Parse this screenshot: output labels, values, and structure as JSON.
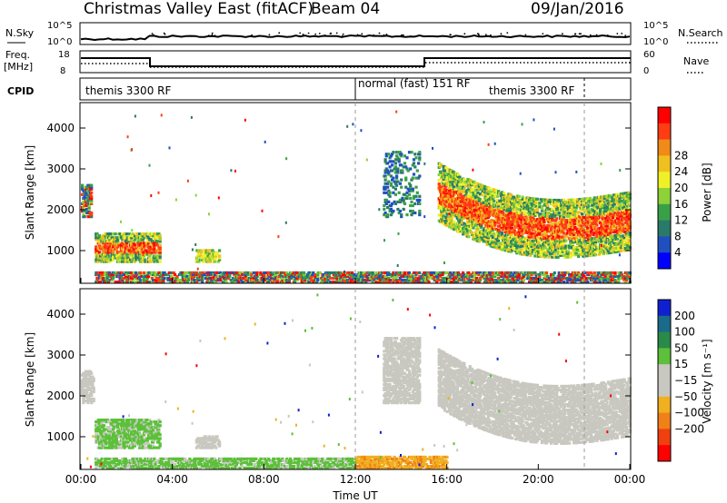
{
  "header": {
    "title": "Christmas Valley East (fitACF)",
    "beam": "Beam 04",
    "date": "09/Jan/2016"
  },
  "panels": {
    "nsky_label": "N.Sky",
    "nsearch_label": "N.Search",
    "freq_label_1": "Freq.",
    "freq_label_2": "[MHz]",
    "nave_label": "Nave",
    "cpid_label": "CPID",
    "nsky_ticks": [
      "10^5",
      "10^0"
    ],
    "nsearch_ticks": [
      "10^5",
      "10^0"
    ],
    "freq_ticks": [
      "18",
      "8"
    ],
    "nave_ticks": [
      "60",
      "0"
    ],
    "cpid_segments": [
      {
        "label": "themis 3300 RF",
        "start": 0,
        "end": 12
      },
      {
        "label": "normal (fast) 151 RF",
        "start": 12,
        "end": 22
      },
      {
        "label": "themis 3300 RF",
        "start": 16.4,
        "end": 24
      }
    ]
  },
  "chart_data": [
    {
      "type": "heatmap",
      "name": "Power",
      "xlabel": "",
      "ylabel": "Slant Range [km]",
      "ylim": [
        200,
        4600
      ],
      "yticks": [
        "1000",
        "2000",
        "3000",
        "4000"
      ],
      "colorbar": {
        "label": "Power [dB]",
        "ticks": [
          "4",
          "8",
          "12",
          "16",
          "20",
          "24",
          "28"
        ],
        "colors": [
          "#0000ff",
          "#2050c0",
          "#2a7a6a",
          "#3aa048",
          "#8cd238",
          "#f0f028",
          "#f0c020",
          "#f08a18",
          "#ff3c14",
          "#ff0000"
        ]
      },
      "bands": [
        {
          "t0": 0.0,
          "t1": 0.4,
          "r0": 1800,
          "r1": 2600,
          "level": "mixed"
        },
        {
          "t0": 0.6,
          "t1": 3.4,
          "r0": 700,
          "r1": 1400,
          "level": "high"
        },
        {
          "t0": 5.0,
          "t1": 6.0,
          "r0": 700,
          "r1": 1000,
          "level": "mid"
        },
        {
          "t0": 0.6,
          "t1": 24.0,
          "r0": 200,
          "r1": 450,
          "level": "mixed"
        },
        {
          "t0": 13.2,
          "t1": 14.8,
          "r0": 1800,
          "r1": 3400,
          "level": "sparse"
        },
        {
          "t0": 15.6,
          "t1": 24.0,
          "r0": 1000,
          "r1": 2400,
          "level": "high"
        }
      ]
    },
    {
      "type": "heatmap",
      "name": "Velocity",
      "xlabel": "Time UT",
      "ylabel": "Slant Range [km]",
      "ylim": [
        200,
        4600
      ],
      "yticks": [
        "1000",
        "2000",
        "3000",
        "4000"
      ],
      "xticks": [
        "00:00",
        "04:00",
        "08:00",
        "12:00",
        "16:00",
        "20:00",
        "00:00"
      ],
      "colorbar": {
        "label": "Velocity [m s⁻¹]",
        "ticks": [
          "200",
          "100",
          "50",
          "15",
          "−15",
          "−50",
          "−100",
          "−200"
        ],
        "colors": [
          "#1020d0",
          "#1a6a8a",
          "#2a8a4a",
          "#5cc03a",
          "#c8c8c0",
          "#c8c8c0",
          "#f0b020",
          "#f08018",
          "#f04010",
          "#ff0000"
        ]
      },
      "bands": [
        {
          "t0": 0.0,
          "t1": 0.5,
          "r0": 1800,
          "r1": 2600,
          "level": "ground"
        },
        {
          "t0": 0.6,
          "t1": 3.4,
          "r0": 700,
          "r1": 1400,
          "level": "positive"
        },
        {
          "t0": 5.0,
          "t1": 6.0,
          "r0": 700,
          "r1": 1000,
          "level": "ground"
        },
        {
          "t0": 0.6,
          "t1": 12.0,
          "r0": 200,
          "r1": 450,
          "level": "positive"
        },
        {
          "t0": 12.0,
          "t1": 16.0,
          "r0": 200,
          "r1": 500,
          "level": "negative"
        },
        {
          "t0": 13.2,
          "t1": 14.8,
          "r0": 1800,
          "r1": 3400,
          "level": "ground"
        },
        {
          "t0": 15.6,
          "t1": 24.0,
          "r0": 1000,
          "r1": 2400,
          "level": "ground"
        }
      ]
    }
  ]
}
